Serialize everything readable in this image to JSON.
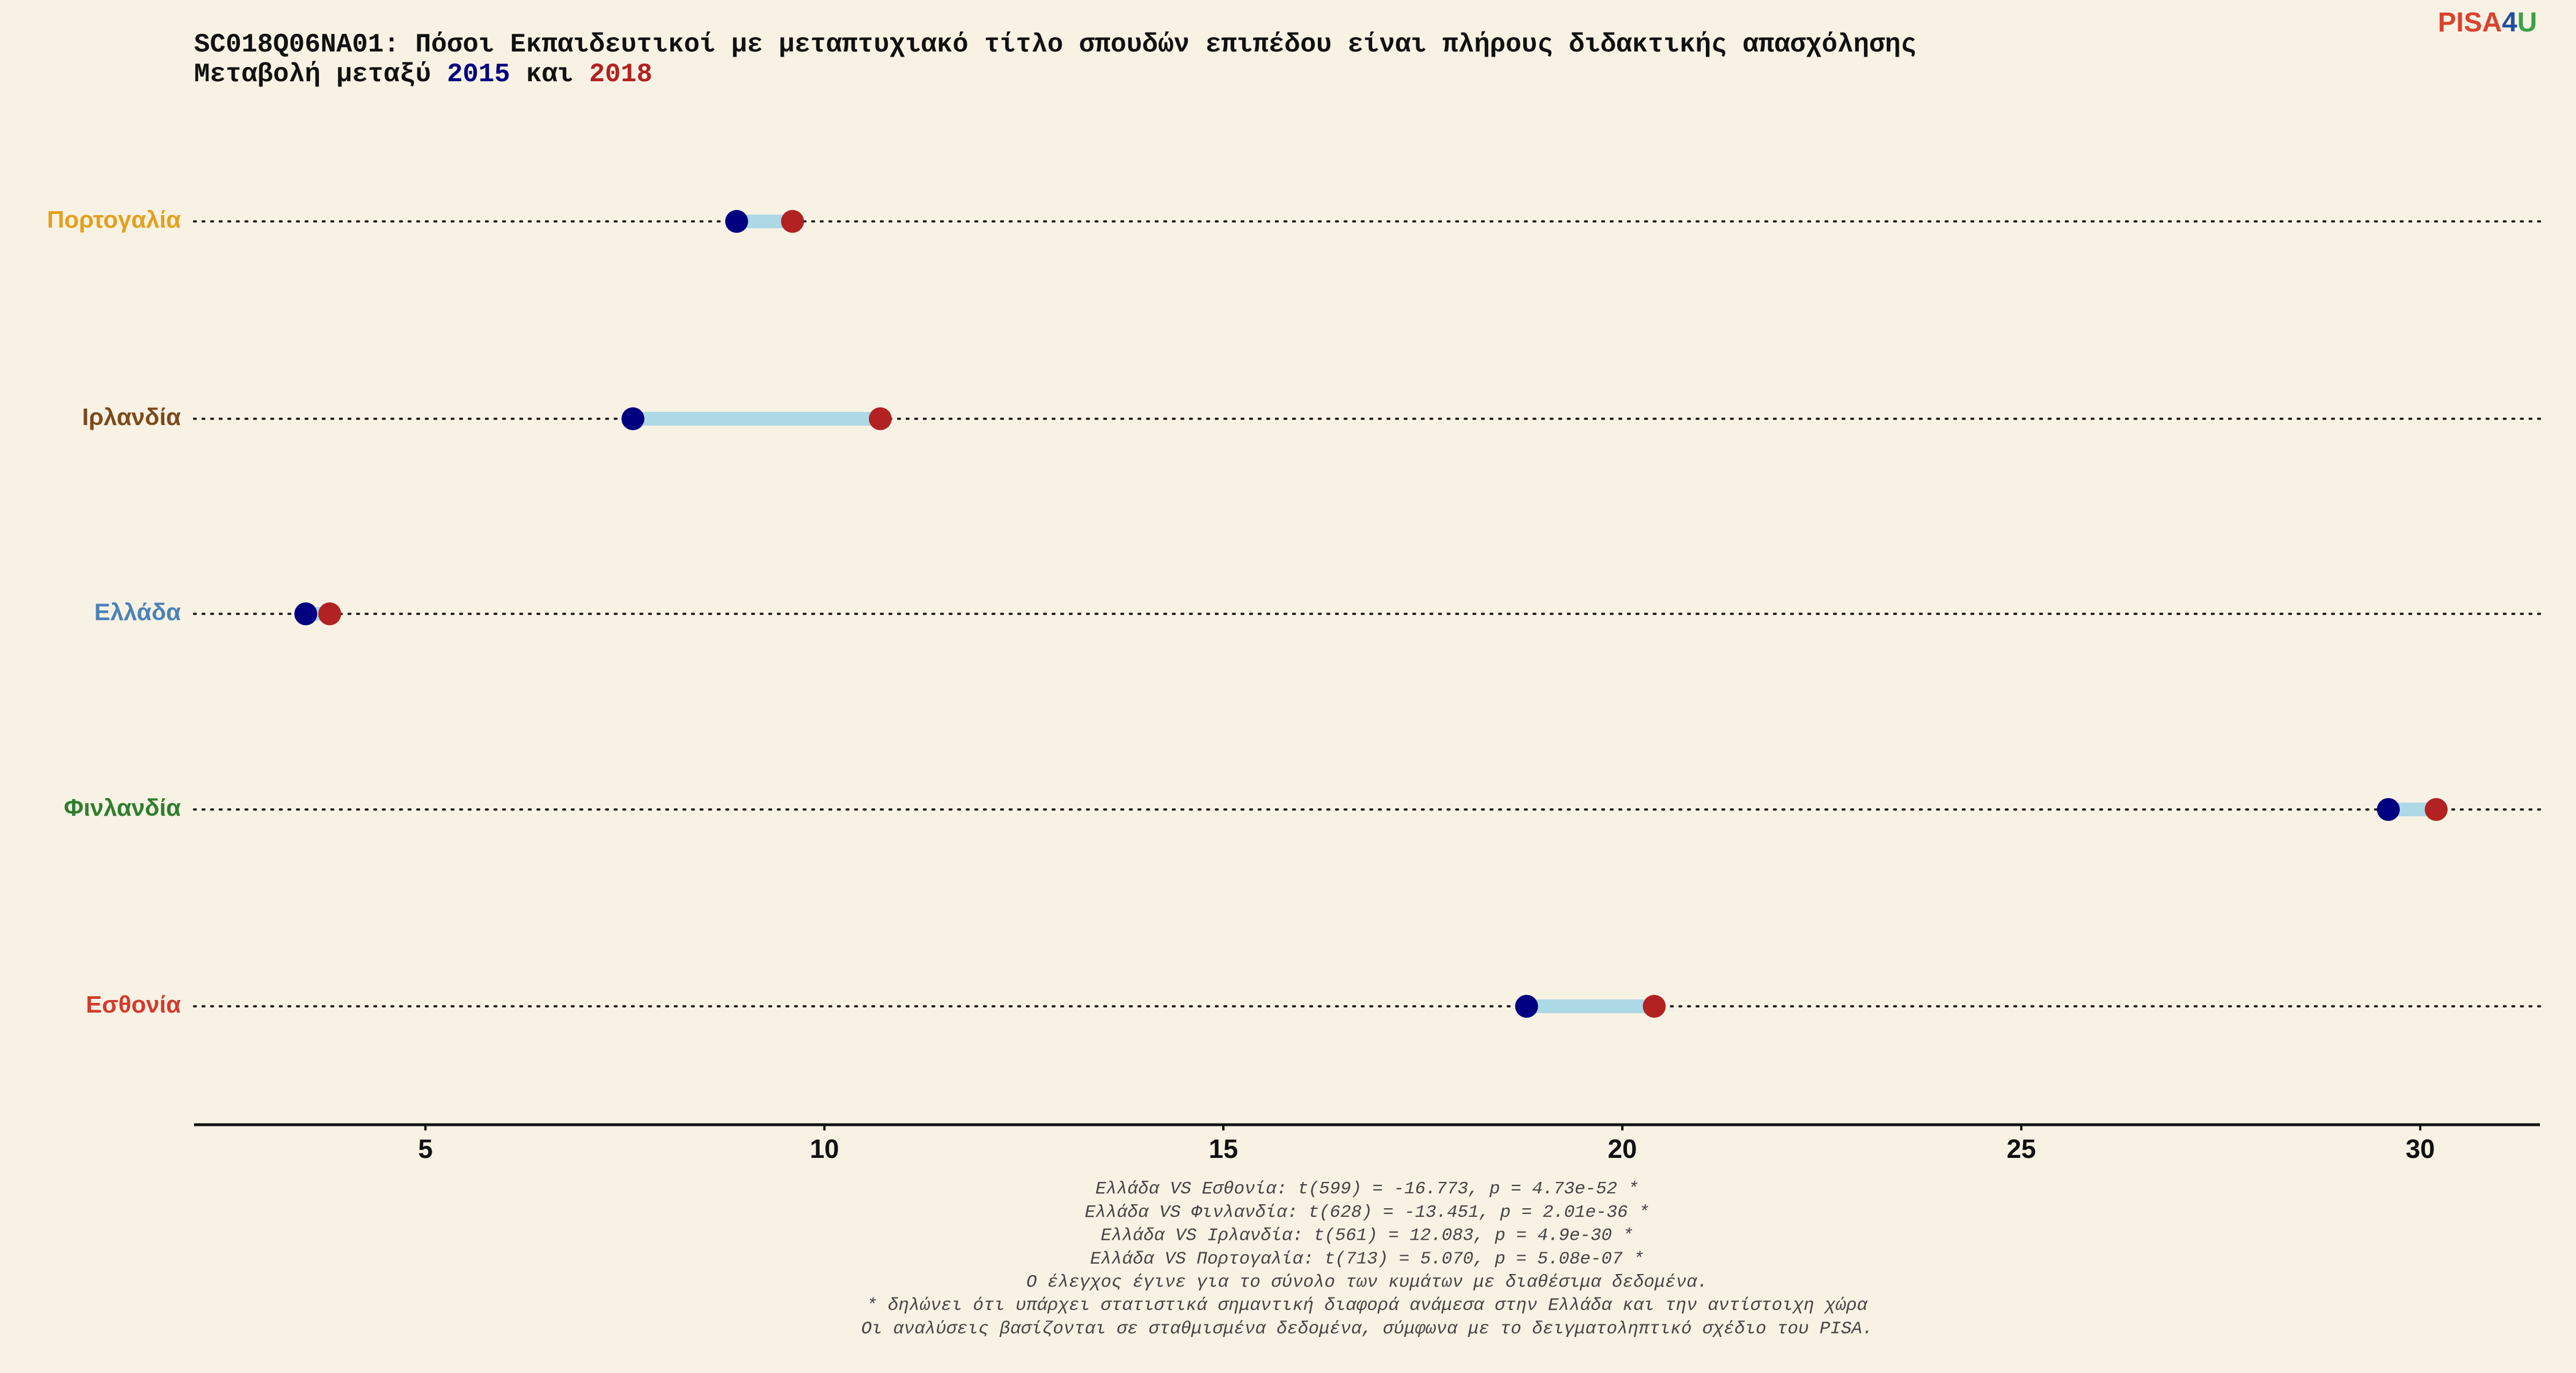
{
  "chart_data": {
    "type": "dumbbell",
    "title": "SC018Q06NA01: Πόσοι Εκπαιδευτικοί με μεταπτυχιακό τίτλο σπουδών επιπέδου είναι πλήρους διδακτικής απασχόλησης",
    "subtitle_words": [
      "Μεταβολή μεταξύ",
      "και"
    ],
    "categories": [
      "Πορτογαλία",
      "Ιρλανδία",
      "Ελλάδα",
      "Φινλανδία",
      "Εσθονία"
    ],
    "category_colors": [
      "#e3a01c",
      "#7b4a1c",
      "#4a82b8",
      "#2f7d2f",
      "#d33a2c"
    ],
    "series": [
      {
        "name": "2015",
        "color": "#000080",
        "values": [
          8.9,
          7.6,
          3.5,
          29.6,
          18.8
        ]
      },
      {
        "name": "2018",
        "color": "#b22222",
        "values": [
          9.6,
          10.7,
          3.8,
          30.2,
          20.4
        ]
      }
    ],
    "segment_color": "#add8e6",
    "xlim": [
      2.1,
      31.5
    ],
    "xticks": [
      5,
      10,
      15,
      20,
      25,
      30
    ],
    "notes": [
      "Ελλάδα VS Εσθονία: t(599) = -16.773, p = 4.73e-52 *",
      "Ελλάδα VS Φινλανδία: t(628) = -13.451, p = 2.01e-36 *",
      "Ελλάδα VS Ιρλανδία: t(561) = 12.083, p = 4.9e-30 *",
      "Ελλάδα VS Πορτογαλία: t(713) = 5.070, p = 5.08e-07 *",
      "Ο έλεγχος έγινε για το σύνολο των κυμάτων με διαθέσιμα δεδομένα.",
      "* δηλώνει ότι υπάρχει στατιστικά σημαντική διαφορά ανάμεσα στην Ελλάδα και την αντίστοιχη χώρα",
      "Οι αναλύσεις βασίζονται σε σταθμισμένα δεδομένα, σύμφωνα με το δειγματοληπτικό σχέδιο του PISA."
    ],
    "logo": [
      "PISA",
      "4",
      "U"
    ]
  }
}
